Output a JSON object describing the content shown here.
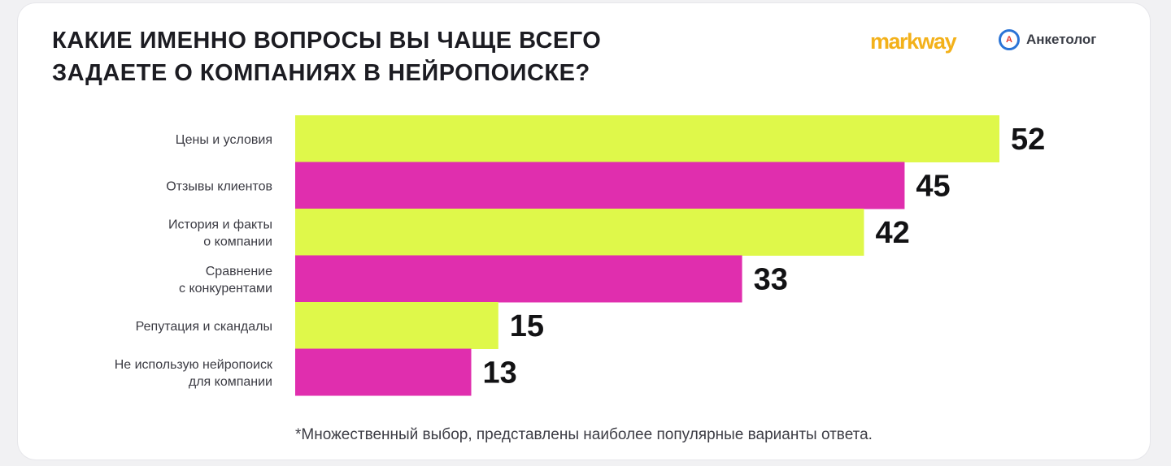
{
  "title_lines": [
    "КАКИЕ ИМЕННО ВОПРОСЫ ВЫ ЧАЩЕ ВСЕГО",
    "ЗАДАЕТЕ О КОМПАНИЯХ В НЕЙРОПОИСКЕ?"
  ],
  "logos": {
    "markway": "markway",
    "anketolog": "Анкетолог",
    "anketolog_icon_letter": "А"
  },
  "footnote": "*Множественный выбор, представлены наиболее популярные варианты ответа.",
  "chart_data": {
    "type": "bar",
    "orientation": "horizontal",
    "categories": [
      [
        "Цены и условия"
      ],
      [
        "Отзывы клиентов"
      ],
      [
        "История и факты",
        "о компании"
      ],
      [
        "Сравнение",
        "с конкурентами"
      ],
      [
        "Репутация и скандалы"
      ],
      [
        "Не использую нейропоиск",
        "для компании"
      ]
    ],
    "values": [
      52,
      45,
      42,
      33,
      15,
      13
    ],
    "bar_colors": [
      "#dff84a",
      "#e02eae",
      "#dff84a",
      "#e02eae",
      "#dff84a",
      "#e02eae"
    ],
    "xlim": [
      0,
      52
    ],
    "grid": false,
    "legend": "none"
  }
}
